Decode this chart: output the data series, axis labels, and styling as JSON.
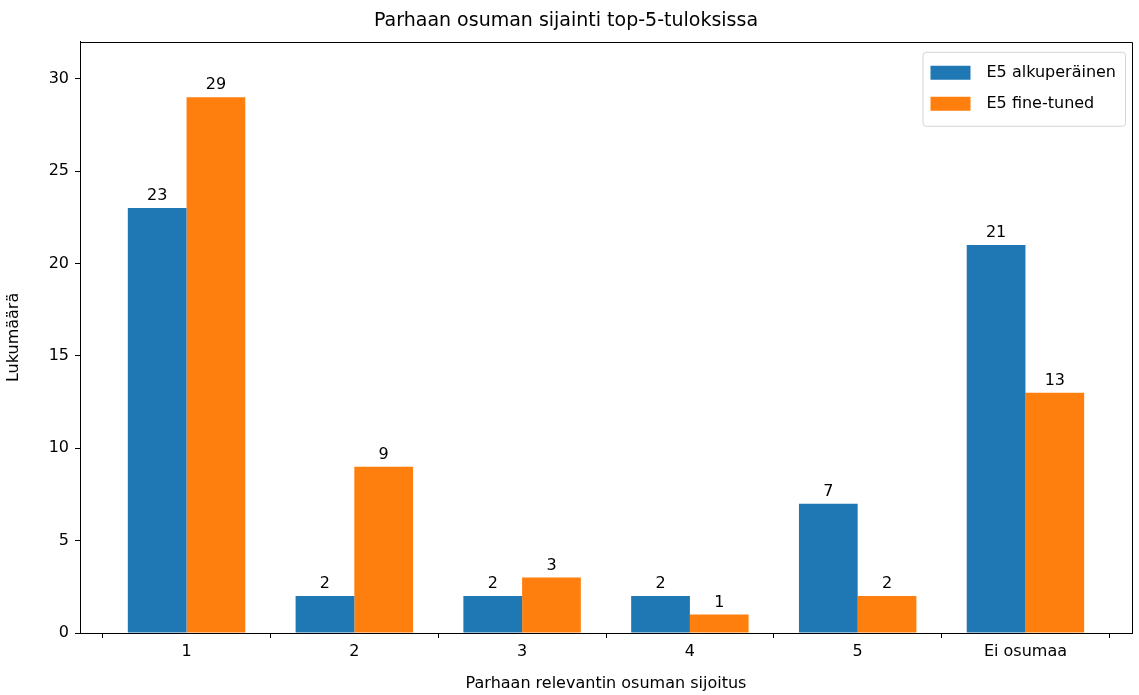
{
  "chart_data": {
    "type": "bar",
    "title": "Parhaan osuman sijainti top-5-tuloksissa",
    "xlabel": "Parhaan relevantin osuman sijoitus",
    "ylabel": "Lukumäärä",
    "categories": [
      "1",
      "2",
      "3",
      "4",
      "5",
      "Ei osumaa"
    ],
    "series": [
      {
        "name": "E5 alkuperäinen",
        "color": "#1f77b4",
        "values": [
          23,
          2,
          2,
          2,
          7,
          21
        ]
      },
      {
        "name": "E5 fine-tuned",
        "color": "#ff7f0e",
        "values": [
          29,
          9,
          3,
          1,
          2,
          13
        ]
      }
    ],
    "ylim": [
      0,
      32
    ],
    "yticks": [
      0,
      5,
      10,
      15,
      20,
      25,
      30
    ],
    "legend": "top right",
    "data_labels": true
  }
}
